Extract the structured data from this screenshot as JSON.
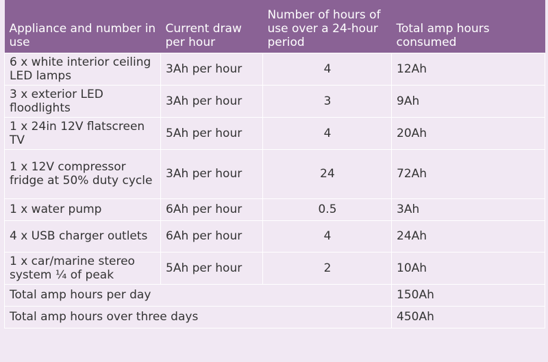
{
  "header": {
    "col1": "Appliance and number in use",
    "col2": "Current draw per hour",
    "col3": "Number of hours of use over a 24-hour period",
    "col4": "Total amp hours consumed"
  },
  "rows": [
    {
      "appliance": "6 x white interior ceiling LED lamps",
      "draw": "3Ah per hour",
      "hours": "4",
      "total": "12Ah"
    },
    {
      "appliance": "3 x exterior LED floodlights",
      "draw": "3Ah per hour",
      "hours": "3",
      "total": "9Ah"
    },
    {
      "appliance": "1 x 24in 12V flatscreen TV",
      "draw": "5Ah per hour",
      "hours": "4",
      "total": "20Ah"
    },
    {
      "appliance": "1 x 12V compressor fridge at 50% duty cycle",
      "draw": "3Ah per hour",
      "hours": "24",
      "total": "72Ah"
    },
    {
      "appliance": "1 x water pump",
      "draw": "6Ah per hour",
      "hours": "0.5",
      "total": "3Ah"
    },
    {
      "appliance": "4 x USB charger outlets",
      "draw": "6Ah per hour",
      "hours": "4",
      "total": "24Ah"
    },
    {
      "appliance": "1 x car/marine stereo system ¼ of peak",
      "draw": "5Ah per hour",
      "hours": "2",
      "total": "10Ah"
    }
  ],
  "totals": [
    {
      "label": "Total amp hours per day",
      "value": "150Ah"
    },
    {
      "label": "Total amp hours over three days",
      "value": "450Ah"
    }
  ]
}
